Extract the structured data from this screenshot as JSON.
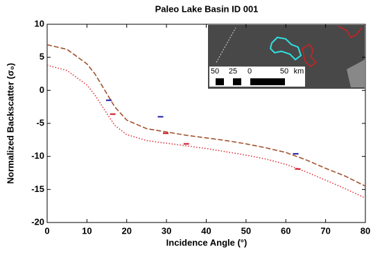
{
  "chart_data": {
    "type": "line",
    "title": "Paleo Lake Basin ID 001",
    "xlabel": "Incidence Angle (°)",
    "ylabel": "Normalized Backscatter (σ₀)",
    "xlim": [
      0,
      80
    ],
    "xticks": [
      0,
      10,
      20,
      30,
      40,
      50,
      60,
      70,
      80
    ],
    "ylim": [
      -20,
      10
    ],
    "yticks": [
      -20,
      -15,
      -10,
      -5,
      0,
      5,
      10
    ],
    "x": [
      0,
      5,
      10,
      12,
      15,
      17,
      20,
      25,
      30,
      35,
      40,
      45,
      50,
      55,
      60,
      65,
      70,
      75,
      80
    ],
    "series": [
      {
        "color": "#a0522d",
        "style": "dashed",
        "values": [
          6.9,
          6.2,
          4,
          2.5,
          -0.5,
          -2.5,
          -4.5,
          -5.8,
          -6.3,
          -6.8,
          -7.2,
          -7.6,
          -8.1,
          -8.7,
          -9.4,
          -10.5,
          -11.8,
          -13,
          -14.5
        ]
      },
      {
        "color": "#e0303a",
        "style": "dotted",
        "values": [
          3.8,
          3,
          0.8,
          -0.7,
          -3.5,
          -5.3,
          -6.7,
          -7.6,
          -8,
          -8.4,
          -8.8,
          -9.3,
          -9.8,
          -10.4,
          -11.2,
          -12.3,
          -13.6,
          -14.9,
          -16.3
        ]
      }
    ],
    "points": [
      {
        "color": "#1a1aa0",
        "x": [
          15.5,
          28.5,
          62.5
        ],
        "values": [
          -1.5,
          -4,
          -9.6
        ]
      },
      {
        "color": "#d01020",
        "x": [
          16.5,
          29.8,
          35,
          63
        ],
        "values": [
          -3.6,
          -6.5,
          -8.1,
          -11.9
        ]
      }
    ],
    "inset_scale": [
      "50",
      "25",
      "0",
      "50",
      "km"
    ]
  }
}
